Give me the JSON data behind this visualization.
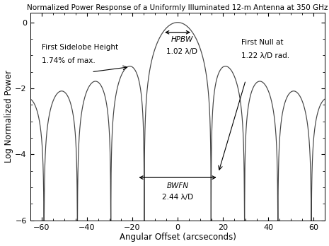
{
  "title": "Normalized Power Response of a Uniformly Illuminated 12-m Antenna at 350 GHz",
  "xlabel": "Angular Offset (arcseconds)",
  "ylabel": "Log Normalized Power",
  "xlim": [
    -65,
    65
  ],
  "ylim": [
    -6.0,
    0.3
  ],
  "yticks": [
    0,
    -2,
    -4,
    -6
  ],
  "xticks": [
    -60,
    -40,
    -20,
    0,
    20,
    40,
    60
  ],
  "bg_color": "#ffffff",
  "line_color": "#444444",
  "D_m": 12,
  "freq_GHz": 350,
  "hpbw_text1": "HPBW",
  "hpbw_text2": "1.02 λ/D",
  "bwfn_text1": "BWFN",
  "bwfn_text2": "2.44 λ/D",
  "first_null_text1": "First Null at",
  "first_null_text2": "1.22 λ/D rad.",
  "first_sl_text1": "First Sidelobe Height",
  "first_sl_text2": "1.74% of max.",
  "title_fontsize": 7.5,
  "axis_label_fontsize": 8.5,
  "tick_fontsize": 8,
  "annot_fontsize": 7.5
}
